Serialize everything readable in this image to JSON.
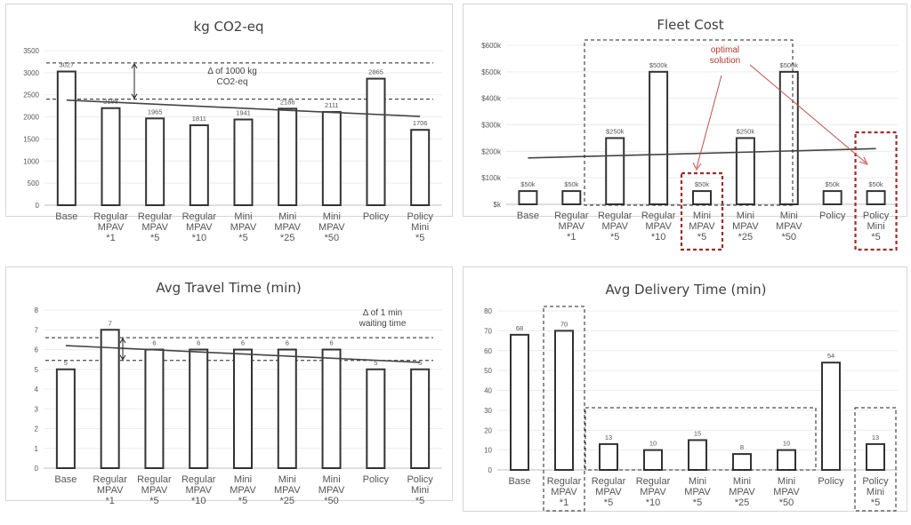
{
  "charts": [
    {
      "type": "bar",
      "title": "kg CO2-eq",
      "categories": [
        "Base",
        "Regular\nMPAV\n*1",
        "Regular\nMPAV\n*5",
        "Regular\nMPAV\n*10",
        "Mini\nMPAV\n*5",
        "Mini\nMPAV\n*25",
        "Mini\nMPAV\n*50",
        "Policy",
        "Policy\nMini\n*5"
      ],
      "values": [
        3027,
        2198,
        1965,
        1811,
        1941,
        2186,
        2111,
        2865,
        1706
      ],
      "value_labels": [
        "3027",
        "2198",
        "1965",
        "1811",
        "1941",
        "2186",
        "2111",
        "2865",
        "1706"
      ],
      "yticks": [
        0,
        500,
        1000,
        1500,
        2000,
        2500,
        3000,
        3500
      ],
      "ytick_labels": [
        "0",
        "500",
        "1000",
        "1500",
        "2000",
        "2500",
        "3000",
        "3500"
      ],
      "ylim": [
        0,
        3500
      ],
      "trendline": [
        2380,
        2010
      ],
      "ref_lines": [
        3220,
        2400
      ],
      "annotation": "Δ of 1000 kg\nCO2-eq"
    },
    {
      "type": "bar",
      "title": "Fleet Cost",
      "categories": [
        "Base",
        "Regular\nMPAV\n*1",
        "Regular\nMPAV\n*5",
        "Regular\nMPAV\n*10",
        "Mini\nMPAV\n*5",
        "Mini\nMPAV\n*25",
        "Mini\nMPAV\n*50",
        "Policy",
        "Policy\nMini\n*5"
      ],
      "values": [
        50,
        50,
        250,
        500,
        50,
        250,
        500,
        50,
        50
      ],
      "value_labels": [
        "$50k",
        "$50k",
        "$250k",
        "$500k",
        "$50k",
        "$250k",
        "$500k",
        "$50k",
        "$50k"
      ],
      "yticks": [
        0,
        100,
        200,
        300,
        400,
        500,
        600
      ],
      "ytick_labels": [
        "$k",
        "$100k",
        "$200k",
        "$300k",
        "$400k",
        "$500k",
        "$600k"
      ],
      "ylim": [
        0,
        600
      ],
      "trendline": [
        175,
        210
      ],
      "annotation": "optimal\nsolution"
    },
    {
      "type": "bar",
      "title": "Avg Travel Time (min)",
      "categories": [
        "Base",
        "Regular\nMPAV\n*1",
        "Regular\nMPAV\n*5",
        "Regular\nMPAV\n*10",
        "Mini\nMPAV\n*5",
        "Mini\nMPAV\n*25",
        "Mini\nMPAV\n*50",
        "Policy",
        "Policy\nMini\n*5"
      ],
      "values": [
        5,
        7,
        6,
        6,
        6,
        6,
        6,
        5,
        5
      ],
      "value_labels": [
        "5",
        "7",
        "6",
        "6",
        "6",
        "6",
        "6",
        "5",
        "5"
      ],
      "yticks": [
        0,
        1,
        2,
        3,
        4,
        5,
        6,
        7,
        8
      ],
      "ytick_labels": [
        "0",
        "1",
        "2",
        "3",
        "4",
        "5",
        "6",
        "7",
        "8"
      ],
      "ylim": [
        0,
        8
      ],
      "trendline": [
        6.2,
        5.35
      ],
      "ref_lines": [
        6.6,
        5.45
      ],
      "annotation": "Δ of 1 min\nwaiting time"
    },
    {
      "type": "bar",
      "title": "Avg Delivery Time (min)",
      "categories": [
        "Base",
        "Regular\nMPAV\n*1",
        "Regular\nMPAV\n*5",
        "Regular\nMPAV\n*10",
        "Mini\nMPAV\n*5",
        "Mini\nMPAV\n*25",
        "Mini\nMPAV\n*50",
        "Policy",
        "Policy\nMini\n*5"
      ],
      "values": [
        68,
        70,
        13,
        10,
        15,
        8,
        10,
        54,
        13
      ],
      "value_labels": [
        "68",
        "70",
        "13",
        "10",
        "15",
        "8",
        "10",
        "54",
        "13"
      ],
      "yticks": [
        0,
        10,
        20,
        30,
        40,
        50,
        60,
        70,
        80
      ],
      "ytick_labels": [
        "0",
        "10",
        "20",
        "30",
        "40",
        "50",
        "60",
        "70",
        "80"
      ],
      "ylim": [
        0,
        80
      ]
    }
  ]
}
